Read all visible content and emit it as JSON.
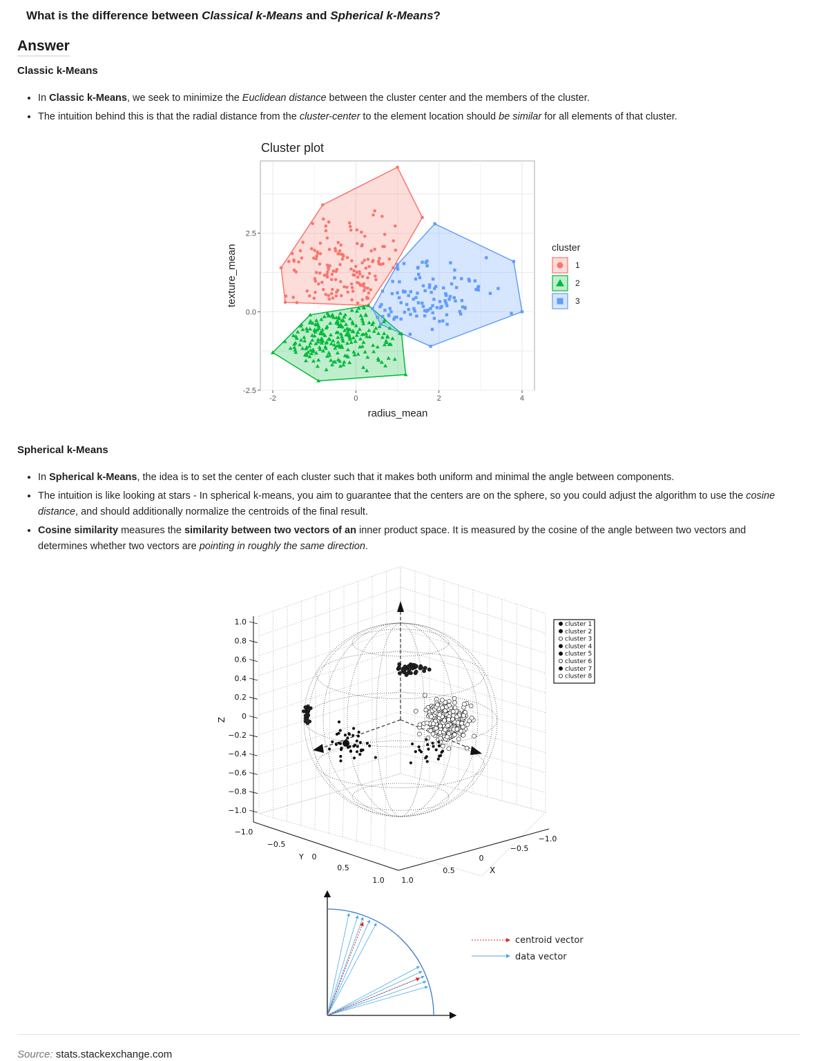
{
  "question": {
    "prefix": "What is the difference between ",
    "term1": "Classical k-Means",
    "mid": " and ",
    "term2": "Spherical k-Means",
    "suffix": "?"
  },
  "answer_heading": "Answer",
  "classic": {
    "heading": "Classic k-Means",
    "b1": {
      "a": "In ",
      "b": "Classic k-Means",
      "c": ", we seek to minimize the ",
      "d": "Euclidean distance",
      "e": " between the cluster center and the members of the cluster."
    },
    "b2": {
      "a": "The intuition behind this is that the radial distance from the ",
      "b": "cluster-center",
      "c": " to the element location should ",
      "d": "be similar",
      "e": " for all elements of that cluster."
    }
  },
  "spherical": {
    "heading": "Spherical k-Means",
    "b1": {
      "a": "In ",
      "b": "Spherical k-Means",
      "c": ", the idea is to set the center of each cluster such that it makes both uniform and minimal the angle between components."
    },
    "b2": {
      "a": "The intuition is like looking at stars - In spherical k-means, you aim to guarantee that the centers are on the sphere, so you could adjust the algorithm to use the ",
      "b": "cosine distance",
      "c": ", and should additionally normalize the centroids of the final result."
    },
    "b3": {
      "a": "Cosine similarity",
      "b": " measures the ",
      "c": "similarity between two vectors of an",
      "d": " inner product space. It is measured by the cosine of the angle between two vectors and determines whether two vectors are ",
      "e": "pointing in roughly the same direction",
      "f": "."
    }
  },
  "chart_data": [
    {
      "type": "scatter",
      "title": "Cluster plot",
      "xlabel": "radius_mean",
      "ylabel": "texture_mean",
      "xlim": [
        -2.3,
        4.3
      ],
      "ylim": [
        -2.5,
        4.8
      ],
      "xticks": [
        -2,
        0,
        2,
        4
      ],
      "xtick_labels": [
        "-2",
        "0",
        "2",
        "4"
      ],
      "yticks": [
        -2.5,
        0.0,
        2.5
      ],
      "ytick_labels": [
        "-2.5",
        "0.0",
        "2.5"
      ],
      "grid": true,
      "legend": {
        "title": "cluster",
        "placement": "right"
      },
      "series": [
        {
          "name": "1",
          "color": "#f8766d",
          "marker": "circle",
          "hull": [
            [
              -1.8,
              1.4
            ],
            [
              -0.8,
              3.4
            ],
            [
              1.0,
              4.6
            ],
            [
              1.6,
              3.0
            ],
            [
              0.9,
              1.4
            ],
            [
              0.3,
              0.2
            ],
            [
              -1.7,
              0.3
            ],
            [
              -1.8,
              1.4
            ]
          ]
        },
        {
          "name": "2",
          "color": "#00ba38",
          "marker": "triangle",
          "hull": [
            [
              -2.0,
              -1.3
            ],
            [
              -1.1,
              -0.1
            ],
            [
              0.3,
              0.2
            ],
            [
              1.1,
              -0.7
            ],
            [
              1.2,
              -2.0
            ],
            [
              -0.9,
              -2.2
            ],
            [
              -2.0,
              -1.3
            ]
          ]
        },
        {
          "name": "3",
          "color": "#619cff",
          "marker": "square",
          "hull": [
            [
              0.4,
              0.1
            ],
            [
              1.0,
              1.5
            ],
            [
              1.9,
              2.8
            ],
            [
              3.8,
              1.6
            ],
            [
              4.0,
              0.0
            ],
            [
              1.8,
              -1.1
            ],
            [
              0.6,
              -0.4
            ],
            [
              0.4,
              0.1
            ]
          ]
        }
      ]
    },
    {
      "type": "scatter",
      "title": "",
      "xlabel": "X",
      "ylabel": "Y",
      "zlabel": "Z",
      "z_ticks": [
        "1.0",
        "0.8",
        "0.6",
        "0.4",
        "0.2",
        "0",
        "−0.2",
        "−0.4",
        "−0.6",
        "−0.8",
        "−1.0"
      ],
      "x_ticks": [
        "−1.0",
        "−0.5",
        "0",
        "0.5",
        "1.0"
      ],
      "y_ticks": [
        "−1.0",
        "−0.5",
        "0",
        "0.5",
        "1.0"
      ],
      "legend": [
        "cluster 1",
        "cluster 2",
        "cluster 3",
        "cluster 4",
        "cluster 5",
        "cluster 6",
        "cluster 7",
        "cluster 8"
      ]
    }
  ],
  "vector_legend": {
    "centroid": "centroid vector",
    "data": "data vector"
  },
  "colors": {
    "centroid": "#e02020",
    "data": "#4aa8e8",
    "arc": "#3a78c8"
  },
  "source": {
    "label": "Source:",
    "site": "stats.stackexchange.com"
  }
}
